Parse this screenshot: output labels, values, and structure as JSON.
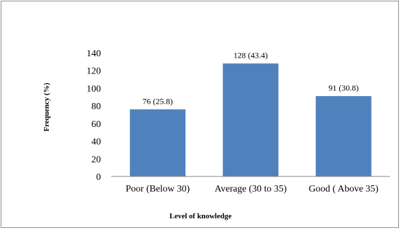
{
  "chart_data": {
    "type": "bar",
    "categories": [
      "Poor (Below 30)",
      "Average (30 to 35)",
      "Good ( Above 35)"
    ],
    "values": [
      76,
      128,
      91
    ],
    "data_labels": [
      "76 (25.8)",
      "128 (43.4)",
      "91 (30.8)"
    ],
    "xlabel": "Level of knowledge",
    "ylabel": "Frequency (%)",
    "ylim": [
      0,
      140
    ],
    "yticks": [
      0,
      20,
      40,
      60,
      80,
      100,
      120,
      140
    ],
    "grid": false,
    "bar_color": "#4f81bd"
  }
}
